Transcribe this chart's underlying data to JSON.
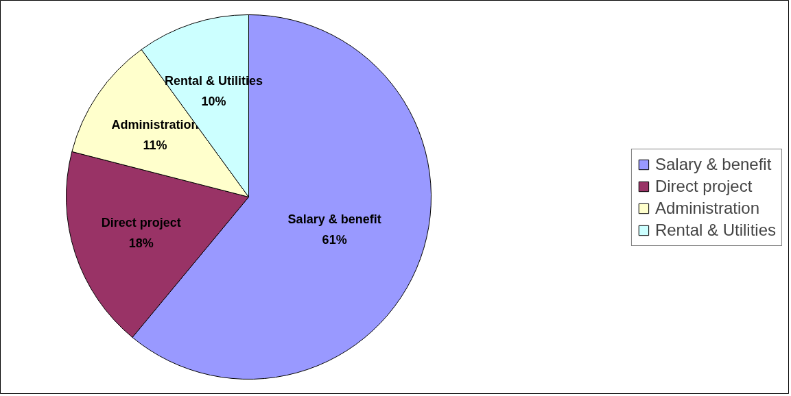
{
  "chart_data": {
    "type": "pie",
    "categories": [
      "Salary & benefit",
      "Direct project",
      "Administration",
      "Rental & Utilities"
    ],
    "values": [
      61,
      18,
      11,
      10
    ],
    "colors": [
      "#9999ff",
      "#993366",
      "#ffffcc",
      "#ccffff"
    ],
    "value_labels": [
      "61%",
      "18%",
      "11%",
      "10%"
    ],
    "legend": "right"
  }
}
